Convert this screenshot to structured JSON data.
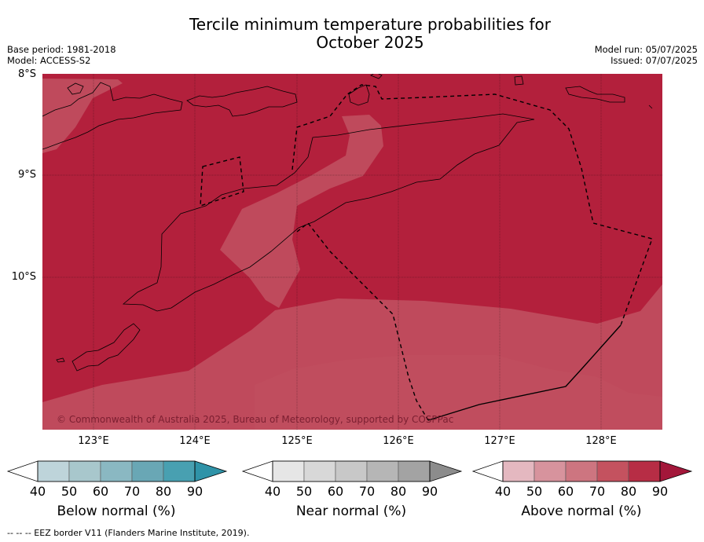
{
  "header": {
    "title_line1": "Tercile minimum temperature probabilities for",
    "title_line2": "October 2025",
    "base_period": "Base period: 1981-2018",
    "model": "Model: ACCESS-S2",
    "model_run": "Model run: 05/07/2025",
    "issued": "Issued: 07/07/2025"
  },
  "map": {
    "lat_labels": [
      "8°S",
      "9°S",
      "10°S"
    ],
    "lon_labels": [
      "123°E",
      "124°E",
      "125°E",
      "126°E",
      "127°E",
      "128°E"
    ],
    "copyright": "© Commonwealth of Australia 2025, Bureau of Meteorology, supported by COSPPac",
    "colors": {
      "above_80": "#b3203c",
      "above_70": "#bf4a5c",
      "land_outline": "#000000",
      "eez_border": "#000000"
    }
  },
  "colorbars": [
    {
      "name": "below",
      "title": "Below normal (%)",
      "ticks": [
        "40",
        "50",
        "60",
        "70",
        "80",
        "90"
      ],
      "colors": [
        "#bed4da",
        "#a8c7cc",
        "#8ab8c2",
        "#69a7b5",
        "#48a0b1",
        "#2f93a8"
      ]
    },
    {
      "name": "near",
      "title": "Near normal (%)",
      "ticks": [
        "40",
        "50",
        "60",
        "70",
        "80",
        "90"
      ],
      "colors": [
        "#e6e6e6",
        "#d8d8d8",
        "#c8c8c8",
        "#b6b6b6",
        "#a3a3a3",
        "#8c8c8c"
      ]
    },
    {
      "name": "above",
      "title": "Above normal (%)",
      "ticks": [
        "40",
        "50",
        "60",
        "70",
        "80",
        "90"
      ],
      "colors": [
        "#e4b8c0",
        "#d7939d",
        "#cd7580",
        "#c4525f",
        "#b72d45",
        "#a3173a"
      ]
    }
  ],
  "footnote": "--  --  -- EEZ border V11 (Flanders Marine Institute, 2019)."
}
